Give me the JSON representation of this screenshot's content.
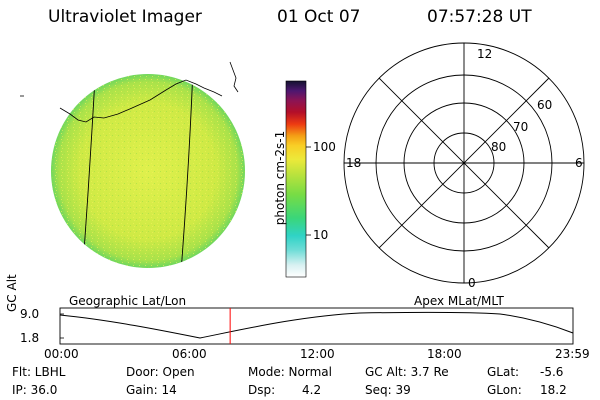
{
  "header": {
    "title": "Ultraviolet Imager",
    "date": "01 Oct 07",
    "time": "07:57:28 UT"
  },
  "colorbar": {
    "label": "photon cm-2s-1",
    "tick_labels": [
      "100",
      "10"
    ]
  },
  "polar_plot": {
    "mlt_labels": [
      "12",
      "18",
      "6",
      "0"
    ],
    "lat_labels": [
      "60",
      "70",
      "80"
    ]
  },
  "image_plot": {
    "projection_label": "Geographic Lat/Lon"
  },
  "orbit_plot": {
    "ylabel": "GC Alt",
    "y_ticks": [
      "9.0",
      "1.8"
    ],
    "x_ticks": [
      "00:00",
      "06:00",
      "12:00",
      "18:00",
      "23:59"
    ],
    "right_label": "Apex MLat/MLT",
    "current_time_marker_hours": 7.96
  },
  "status": {
    "flt": "Flt: LBHL",
    "ip": "IP: 36.0",
    "door": "Door: Open",
    "gain": "Gain: 14",
    "mode": "Mode: Normal",
    "dsp_label": "Dsp:",
    "dsp_value": "4.2",
    "gc_alt": "GC Alt: 3.7 Re",
    "seq": "Seq: 39",
    "glat_label": "GLat:",
    "glat_value": "-5.6",
    "glon_label": "GLon:",
    "glon_value": "18.2"
  },
  "colors": {
    "earth_fill": "#d6ee4a",
    "earth_mid": "#c8e83f",
    "earth_edge": "#7fdc55",
    "time_marker": "#ff0000",
    "colorbar_stops": [
      "#ffffff",
      "#9fe3e0",
      "#30d3c6",
      "#38d36a",
      "#a7de3f",
      "#f2ec2e",
      "#f49f15",
      "#ed3b12",
      "#b40f28",
      "#7d1148",
      "#4d1770",
      "#141230"
    ]
  }
}
